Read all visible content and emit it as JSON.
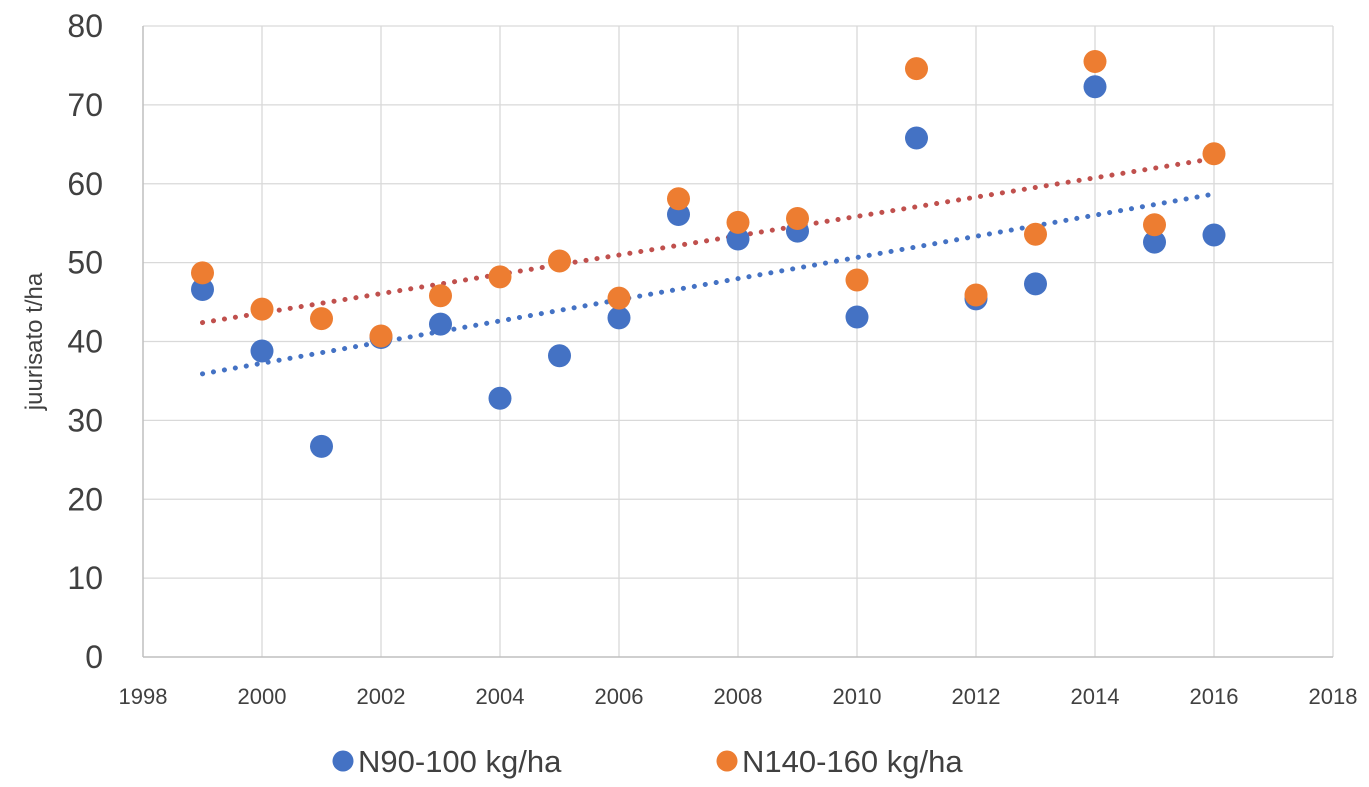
{
  "chart_data": {
    "type": "scatter",
    "title": "",
    "xlabel": "",
    "ylabel": "juurisato t/ha",
    "xlim": [
      1998,
      2018
    ],
    "ylim": [
      0,
      80
    ],
    "x_ticks": [
      "1998",
      "2000",
      "2002",
      "2004",
      "2006",
      "2008",
      "2010",
      "2012",
      "2014",
      "2016",
      "2018"
    ],
    "y_ticks": [
      "0",
      "10",
      "20",
      "30",
      "40",
      "50",
      "60",
      "70",
      "80"
    ],
    "grid": true,
    "legend_position": "bottom",
    "x": [
      1999,
      2000,
      2001,
      2002,
      2003,
      2004,
      2005,
      2006,
      2007,
      2008,
      2009,
      2010,
      2011,
      2012,
      2013,
      2014,
      2015,
      2016
    ],
    "series": [
      {
        "name": "N90-100 kg/ha",
        "color": "#4472C4",
        "values": [
          46.6,
          38.8,
          26.7,
          40.5,
          42.2,
          32.8,
          38.2,
          43.0,
          56.1,
          53.0,
          54.0,
          43.1,
          65.8,
          45.4,
          47.3,
          72.3,
          52.6,
          53.5
        ],
        "trendline": {
          "color": "#4472C4",
          "x": [
            1999,
            2016
          ],
          "y": [
            35.9,
            58.7
          ]
        }
      },
      {
        "name": "N140-160 kg/ha",
        "color": "#ED7D31",
        "values": [
          48.7,
          44.1,
          42.9,
          40.7,
          45.8,
          48.2,
          50.2,
          45.5,
          58.1,
          55.1,
          55.6,
          47.8,
          74.6,
          45.9,
          53.6,
          75.5,
          54.8,
          63.8
        ],
        "trendline": {
          "color": "#C0504D",
          "x": [
            1999,
            2016
          ],
          "y": [
            42.4,
            63.2
          ]
        }
      }
    ]
  }
}
